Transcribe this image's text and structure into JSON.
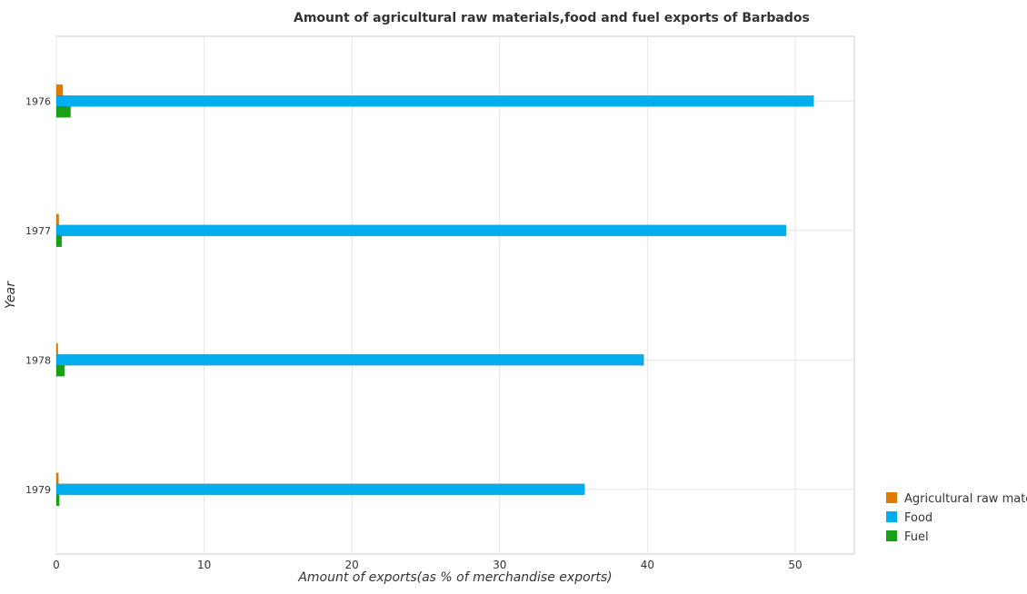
{
  "chart_data": {
    "type": "bar",
    "orientation": "horizontal",
    "title": "Amount of agricultural raw materials,food and fuel exports of Barbados",
    "xlabel": "Amount of exports(as % of merchandise exports)",
    "ylabel": "Year",
    "categories": [
      "1976",
      "1977",
      "1978",
      "1979"
    ],
    "xlim": [
      0,
      54
    ],
    "xticks": [
      0,
      10,
      20,
      30,
      40,
      50
    ],
    "grid": true,
    "legend_position": "bottom-right",
    "series": [
      {
        "name": "Agricultural raw materials",
        "color": "#e07b00",
        "values": [
          0.42,
          0.16,
          0.1,
          0.14
        ]
      },
      {
        "name": "Food",
        "color": "#00aeef",
        "values": [
          51.25,
          49.38,
          39.75,
          35.75
        ]
      },
      {
        "name": "Fuel",
        "color": "#16a214",
        "values": [
          0.96,
          0.36,
          0.55,
          0.2
        ]
      }
    ]
  }
}
